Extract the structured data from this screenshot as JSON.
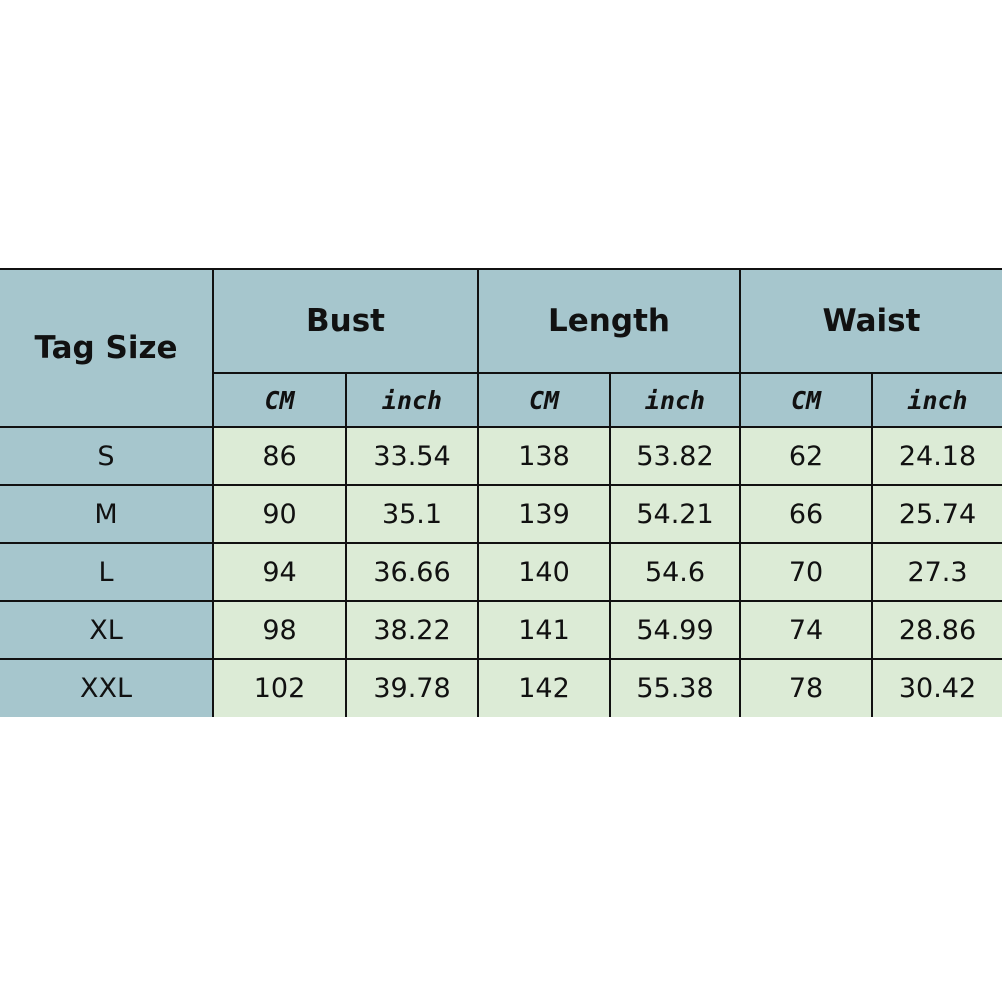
{
  "header": {
    "tag_size": "Tag Size",
    "groups": [
      "Bust",
      "Length",
      "Waist"
    ],
    "units": [
      "CM",
      "inch",
      "CM",
      "inch",
      "CM",
      "inch"
    ]
  },
  "rows": [
    {
      "size": "S",
      "values": [
        "86",
        "33.54",
        "138",
        "53.82",
        "62",
        "24.18"
      ]
    },
    {
      "size": "M",
      "values": [
        "90",
        "35.1",
        "139",
        "54.21",
        "66",
        "25.74"
      ]
    },
    {
      "size": "L",
      "values": [
        "94",
        "36.66",
        "140",
        "54.6",
        "70",
        "27.3"
      ]
    },
    {
      "size": "XL",
      "values": [
        "98",
        "38.22",
        "141",
        "54.99",
        "74",
        "28.86"
      ]
    },
    {
      "size": "XXL",
      "values": [
        "102",
        "39.78",
        "142",
        "55.38",
        "78",
        "30.42"
      ]
    }
  ],
  "colors": {
    "header": "#a6c6cd",
    "cell": "#dcebd6",
    "border": "#111111"
  }
}
